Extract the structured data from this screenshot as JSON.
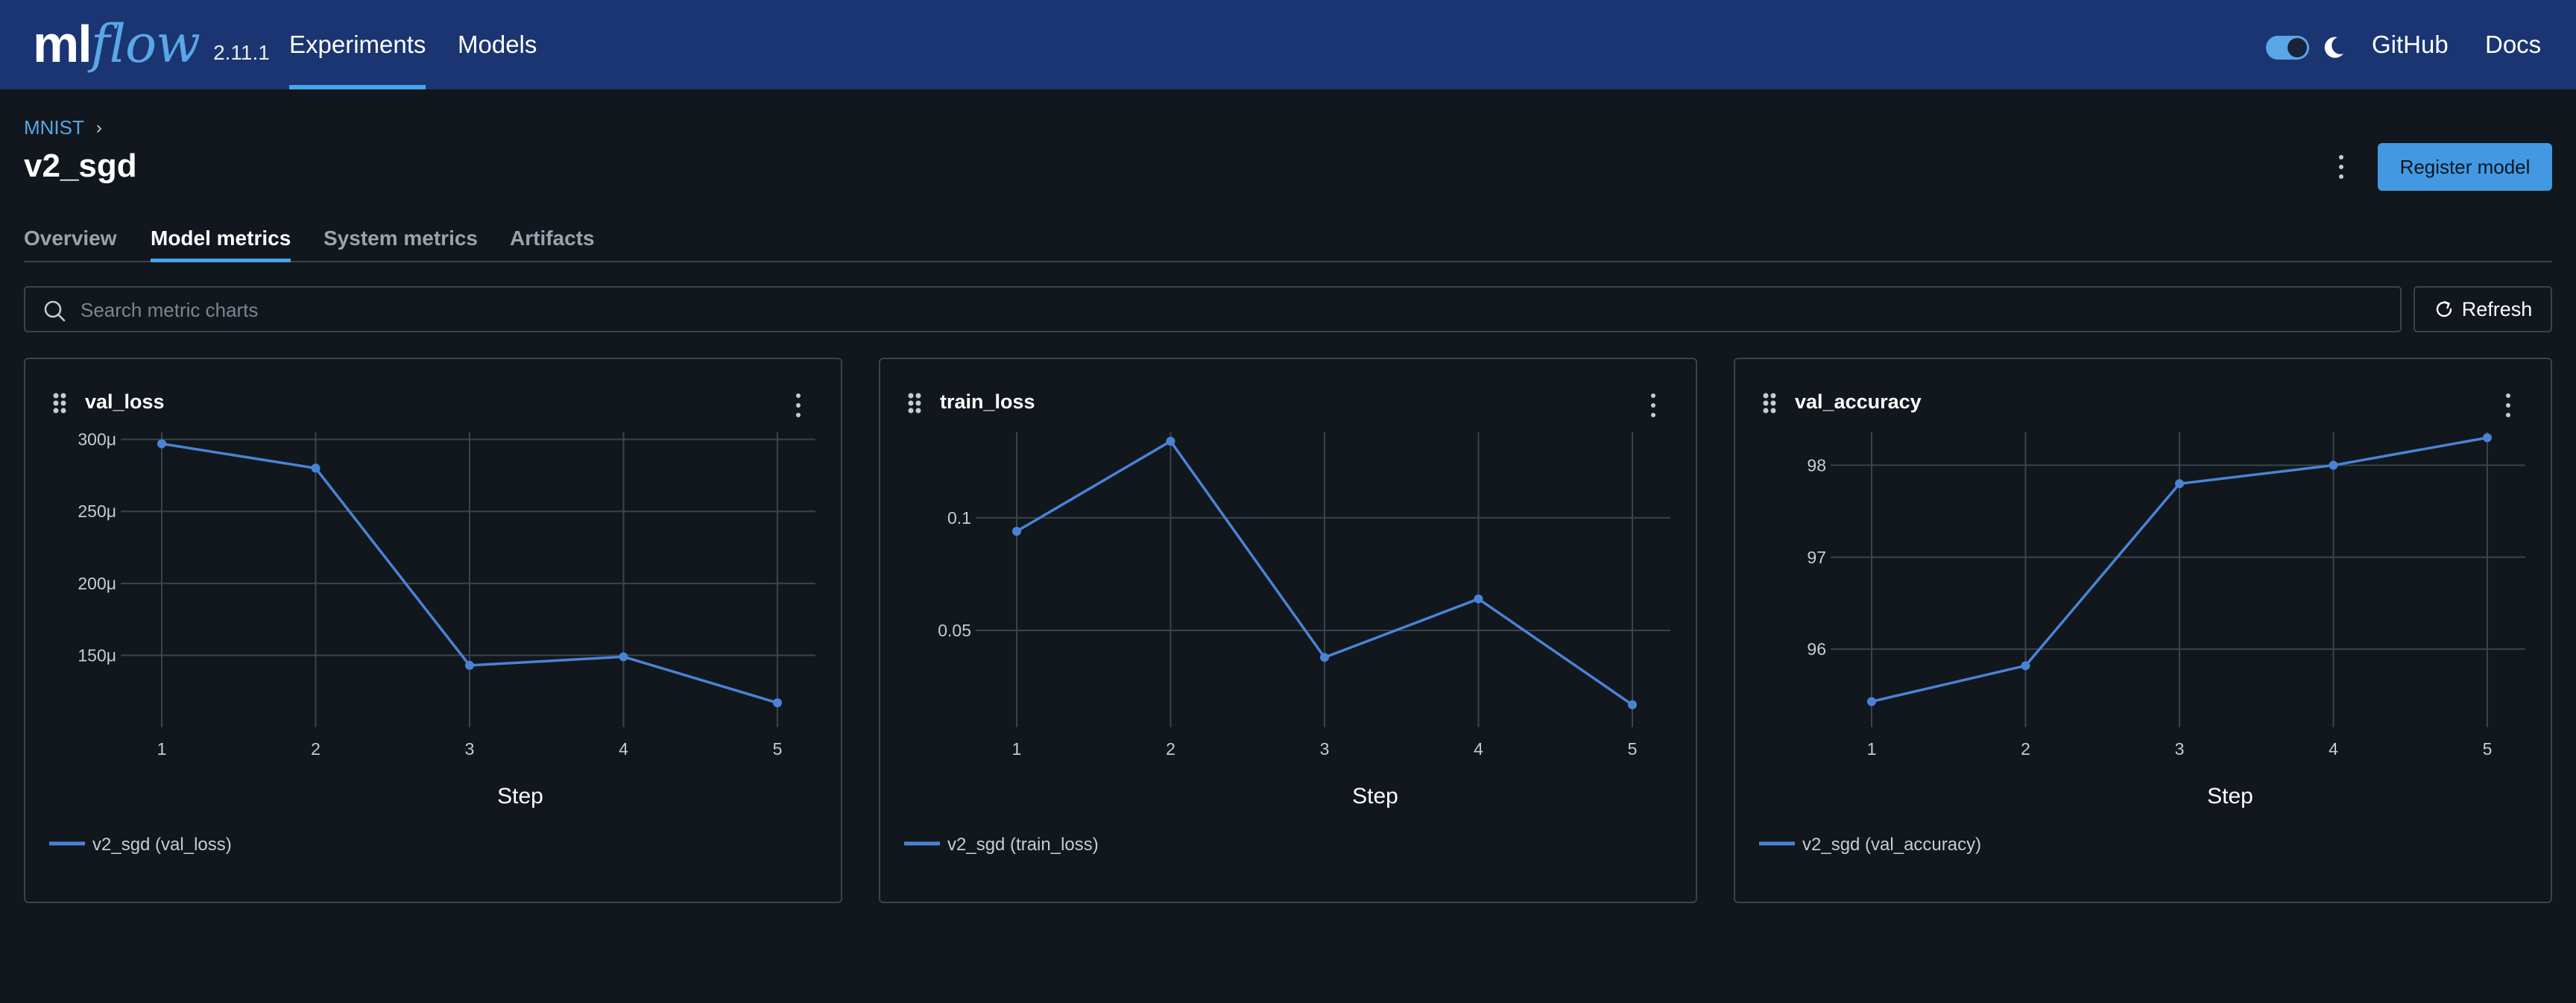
{
  "header": {
    "logo_ml": "ml",
    "logo_flow": "flow",
    "version": "2.11.1",
    "nav": [
      {
        "label": "Experiments",
        "active": true
      },
      {
        "label": "Models",
        "active": false
      }
    ],
    "github_label": "GitHub",
    "docs_label": "Docs",
    "accent_color": "#1a3572"
  },
  "breadcrumb": {
    "experiment": "MNIST",
    "separator": "›"
  },
  "page": {
    "title": "v2_sgd",
    "register_label": "Register model"
  },
  "tabs": [
    {
      "label": "Overview",
      "active": false
    },
    {
      "label": "Model metrics",
      "active": true
    },
    {
      "label": "System metrics",
      "active": false
    },
    {
      "label": "Artifacts",
      "active": false
    }
  ],
  "search": {
    "placeholder": "Search metric charts",
    "value": ""
  },
  "refresh_label": "Refresh",
  "chart_data": [
    {
      "type": "line",
      "title": "val_loss",
      "xlabel": "Step",
      "ylabel": "",
      "x": [
        1,
        2,
        3,
        4,
        5
      ],
      "xticks": [
        "1",
        "2",
        "3",
        "4",
        "5"
      ],
      "ylim": [
        0.0001,
        0.000305
      ],
      "yticks": [
        0.00015,
        0.0002,
        0.00025,
        0.0003
      ],
      "ytick_labels": [
        "150μ",
        "200μ",
        "250μ",
        "300μ"
      ],
      "series": [
        {
          "name": "v2_sgd (val_loss)",
          "values": [
            0.000297,
            0.00028,
            0.000143,
            0.000149,
            0.000117
          ],
          "color": "#4a83d6"
        }
      ],
      "grid": true,
      "legend": "bottom-left"
    },
    {
      "type": "line",
      "title": "train_loss",
      "xlabel": "Step",
      "ylabel": "",
      "x": [
        1,
        2,
        3,
        4,
        5
      ],
      "xticks": [
        "1",
        "2",
        "3",
        "4",
        "5"
      ],
      "ylim": [
        0.007,
        0.138
      ],
      "yticks": [
        0.05,
        0.1
      ],
      "ytick_labels": [
        "0.05",
        "0.1"
      ],
      "series": [
        {
          "name": "v2_sgd (train_loss)",
          "values": [
            0.094,
            0.134,
            0.038,
            0.064,
            0.017
          ],
          "color": "#4a83d6"
        }
      ],
      "grid": true,
      "legend": "bottom-left"
    },
    {
      "type": "line",
      "title": "val_accuracy",
      "xlabel": "Step",
      "ylabel": "",
      "x": [
        1,
        2,
        3,
        4,
        5
      ],
      "xticks": [
        "1",
        "2",
        "3",
        "4",
        "5"
      ],
      "ylim": [
        95.15,
        98.36
      ],
      "yticks": [
        96,
        97,
        98
      ],
      "ytick_labels": [
        "96",
        "97",
        "98"
      ],
      "series": [
        {
          "name": "v2_sgd (val_accuracy)",
          "values": [
            95.43,
            95.82,
            97.8,
            98.0,
            98.3
          ],
          "color": "#4a83d6"
        }
      ],
      "grid": true,
      "legend": "bottom-left"
    }
  ]
}
